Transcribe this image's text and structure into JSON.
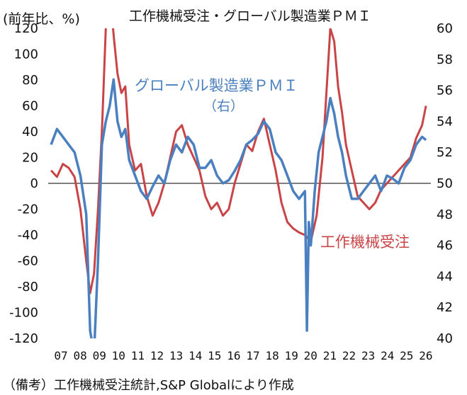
{
  "header": {
    "unit_label": "(前年比、%)",
    "title": "工作機械受注・グローバル製造業ＰＭＩ"
  },
  "footer": {
    "source_note": "（備考）工作機械受注統計,S&P Globalにより作成"
  },
  "colors": {
    "orders": "#c84446",
    "pmi": "#4a7fc0",
    "zero_line": "#555555"
  },
  "chart_data": {
    "type": "line",
    "x_tick_labels": [
      "07",
      "08",
      "09",
      "10",
      "11",
      "12",
      "13",
      "14",
      "15",
      "16",
      "17",
      "18",
      "19",
      "20",
      "21",
      "22",
      "23",
      "24",
      "25",
      "26"
    ],
    "y_left": {
      "ylim": [
        -120,
        120
      ],
      "ticks": [
        "120",
        "100",
        "80",
        "60",
        "40",
        "20",
        "0",
        "-20",
        "-40",
        "-60",
        "-80",
        "-100",
        "-120"
      ]
    },
    "y_right": {
      "ylim": [
        40,
        60
      ],
      "ticks": [
        "60",
        "58",
        "56",
        "54",
        "52",
        "50",
        "48",
        "46",
        "44",
        "42",
        "40"
      ]
    },
    "series": [
      {
        "name": "工作機械受注",
        "axis": "left",
        "x": [
          2007.0,
          2007.3,
          2007.6,
          2007.9,
          2008.2,
          2008.5,
          2008.8,
          2009.0,
          2009.2,
          2009.4,
          2009.6,
          2009.8,
          2010.0,
          2010.2,
          2010.4,
          2010.6,
          2010.8,
          2011.0,
          2011.3,
          2011.6,
          2011.9,
          2012.2,
          2012.5,
          2012.8,
          2013.1,
          2013.4,
          2013.7,
          2014.0,
          2014.3,
          2014.6,
          2014.9,
          2015.2,
          2015.5,
          2015.8,
          2016.1,
          2016.4,
          2016.7,
          2017.0,
          2017.3,
          2017.6,
          2017.9,
          2018.2,
          2018.5,
          2018.8,
          2019.1,
          2019.4,
          2019.7,
          2020.0,
          2020.3,
          2020.6,
          2020.9,
          2021.1,
          2021.3,
          2021.5,
          2021.7,
          2021.9,
          2022.1,
          2022.4,
          2022.7,
          2023.0,
          2023.3,
          2023.6,
          2023.9,
          2024.2,
          2024.5,
          2024.8,
          2025.1,
          2025.4,
          2025.7,
          2026.0,
          2026.2
        ],
        "values": [
          10,
          5,
          15,
          12,
          5,
          -20,
          -60,
          -85,
          -70,
          -20,
          40,
          120,
          150,
          115,
          85,
          70,
          75,
          30,
          10,
          15,
          -10,
          -25,
          -15,
          0,
          20,
          40,
          45,
          30,
          20,
          10,
          -10,
          -20,
          -15,
          -25,
          -20,
          0,
          15,
          30,
          25,
          40,
          50,
          30,
          10,
          -15,
          -30,
          -35,
          -38,
          -40,
          -45,
          -25,
          20,
          70,
          120,
          110,
          75,
          55,
          30,
          10,
          -10,
          -15,
          -20,
          -15,
          -5,
          0,
          5,
          10,
          15,
          20,
          35,
          45,
          60
        ]
      },
      {
        "name": "グローバル製造業ＰＭＩ",
        "axis": "right",
        "x": [
          2007.0,
          2007.3,
          2007.6,
          2007.9,
          2008.2,
          2008.5,
          2008.8,
          2009.0,
          2009.2,
          2009.4,
          2009.6,
          2009.8,
          2010.0,
          2010.2,
          2010.4,
          2010.6,
          2010.8,
          2011.0,
          2011.3,
          2011.6,
          2011.9,
          2012.2,
          2012.5,
          2012.8,
          2013.1,
          2013.4,
          2013.7,
          2014.0,
          2014.3,
          2014.6,
          2014.9,
          2015.2,
          2015.5,
          2015.8,
          2016.1,
          2016.4,
          2016.7,
          2017.0,
          2017.3,
          2017.6,
          2017.9,
          2018.2,
          2018.5,
          2018.8,
          2019.1,
          2019.4,
          2019.7,
          2020.0,
          2020.1,
          2020.2,
          2020.3,
          2020.5,
          2020.7,
          2020.9,
          2021.1,
          2021.3,
          2021.5,
          2021.7,
          2021.9,
          2022.1,
          2022.4,
          2022.7,
          2023.0,
          2023.3,
          2023.6,
          2023.9,
          2024.2,
          2024.5,
          2024.8,
          2025.1,
          2025.4,
          2025.7,
          2026.0,
          2026.2
        ],
        "values": [
          52.5,
          53.5,
          53.0,
          52.5,
          52.0,
          50.5,
          48.0,
          40.5,
          39.0,
          45.0,
          52.5,
          54.0,
          55.0,
          56.7,
          54.0,
          53.0,
          53.5,
          51.5,
          50.5,
          49.5,
          49.0,
          49.8,
          50.5,
          50.0,
          51.5,
          52.5,
          52.0,
          53.0,
          52.5,
          51.0,
          51.0,
          51.5,
          50.5,
          50.0,
          50.2,
          50.8,
          51.5,
          52.5,
          52.8,
          53.2,
          54.0,
          53.5,
          52.0,
          51.5,
          50.5,
          49.5,
          49.0,
          49.5,
          40.5,
          47.5,
          46.0,
          49.5,
          52.0,
          53.0,
          54.0,
          55.5,
          54.5,
          53.0,
          52.0,
          50.5,
          49.0,
          49.0,
          49.5,
          50.0,
          50.5,
          49.5,
          50.5,
          50.3,
          50.0,
          51.0,
          51.5,
          52.5,
          53.0,
          52.8
        ]
      }
    ],
    "annotations": [
      {
        "text": "グローバル製造業ＰＭＩ",
        "series": "pmi"
      },
      {
        "text": "（右）",
        "series": "pmi"
      },
      {
        "text": "工作機械受注",
        "series": "orders"
      }
    ],
    "grid": false
  }
}
